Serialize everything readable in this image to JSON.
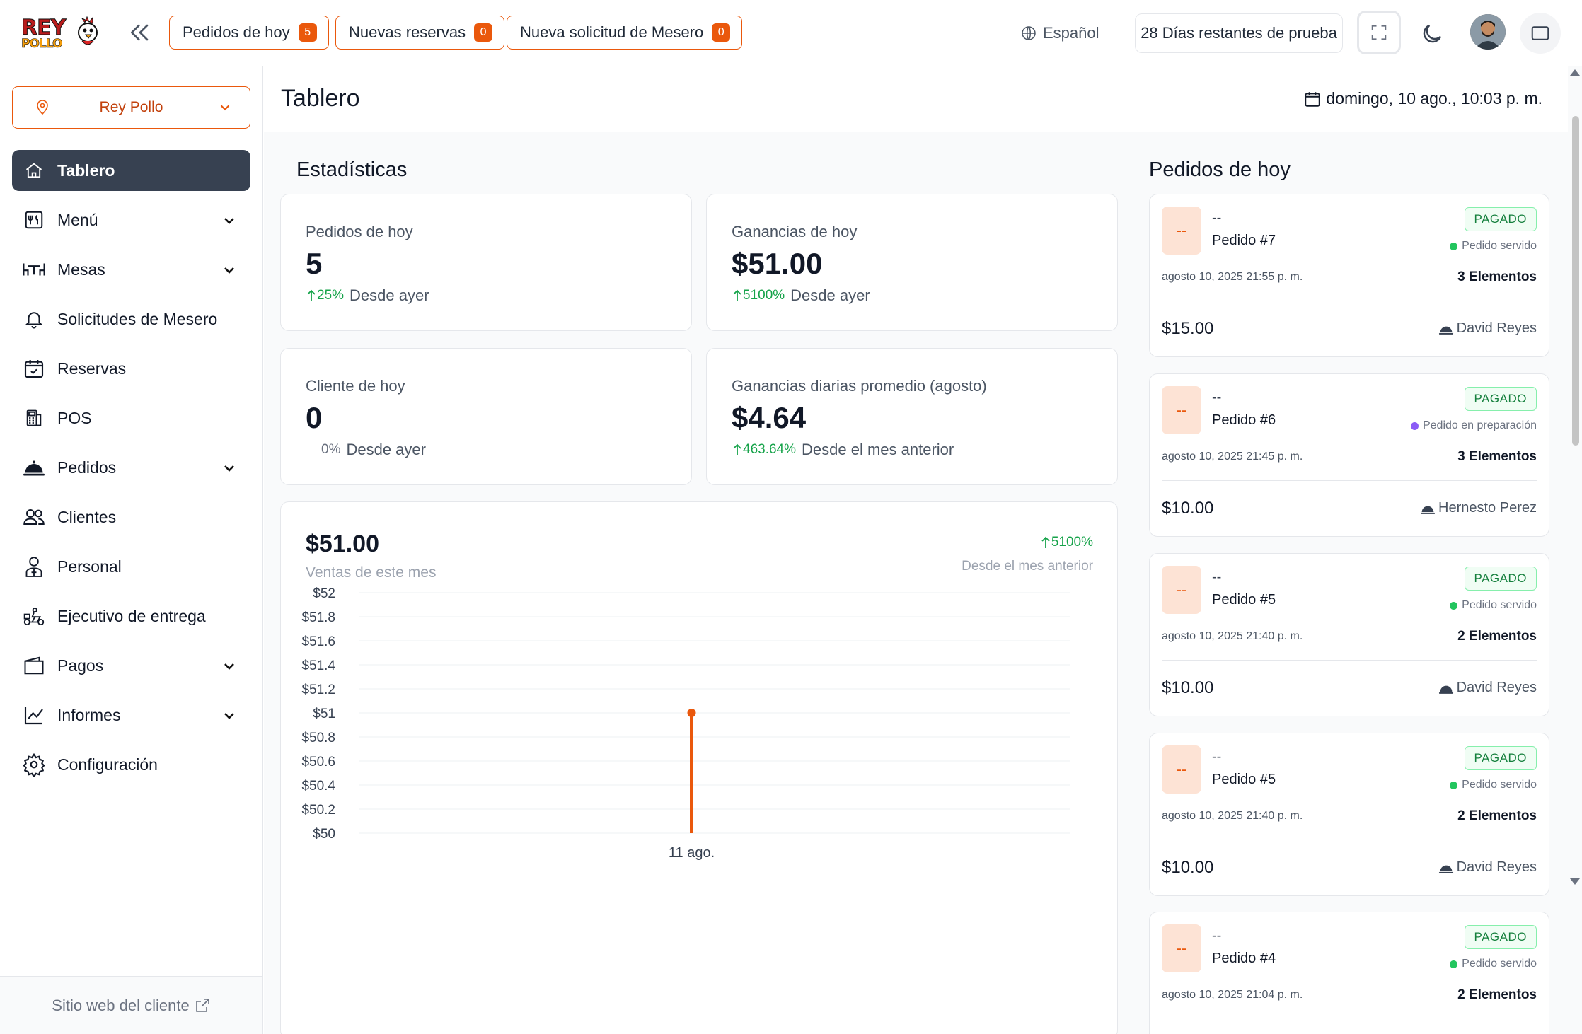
{
  "header": {
    "logo_text_top": "REY",
    "logo_text_bottom": "POLLO",
    "pills": [
      {
        "label": "Pedidos de hoy",
        "count": "5"
      },
      {
        "label": "Nuevas reservas",
        "count": "0"
      },
      {
        "label": "Nueva solicitud de Mesero",
        "count": "0"
      }
    ],
    "language": "Español",
    "trial": "28 Días restantes de prueba"
  },
  "sidebar": {
    "branch": "Rey Pollo",
    "items": [
      {
        "label": "Tablero",
        "icon": "home-icon"
      },
      {
        "label": "Menú",
        "icon": "menu-icon"
      },
      {
        "label": "Mesas",
        "icon": "tables-icon"
      },
      {
        "label": "Solicitudes de Mesero",
        "icon": "bell-icon"
      },
      {
        "label": "Reservas",
        "icon": "calendar-check-icon"
      },
      {
        "label": "POS",
        "icon": "pos-icon"
      },
      {
        "label": "Pedidos",
        "icon": "cloche-icon"
      },
      {
        "label": "Clientes",
        "icon": "users-icon"
      },
      {
        "label": "Personal",
        "icon": "staff-icon"
      },
      {
        "label": "Ejecutivo de entrega",
        "icon": "delivery-icon"
      },
      {
        "label": "Pagos",
        "icon": "wallet-icon"
      },
      {
        "label": "Informes",
        "icon": "chart-line-icon"
      },
      {
        "label": "Configuración",
        "icon": "gear-icon"
      }
    ],
    "footer_link": "Sitio web del cliente"
  },
  "main": {
    "title": "Tablero",
    "datetime": "domingo, 10 ago., 10:03 p. m.",
    "stats_title": "Estadísticas",
    "stats": [
      {
        "label": "Pedidos de hoy",
        "value": "5",
        "pct": "25%",
        "note": "Desde ayer"
      },
      {
        "label": "Ganancias de hoy",
        "value": "$51.00",
        "pct": "5100%",
        "note": "Desde ayer"
      },
      {
        "label": "Cliente de hoy",
        "value": "0",
        "pct": "0%",
        "note": "Desde ayer"
      },
      {
        "label": "Ganancias diarias promedio (agosto)",
        "value": "$4.64",
        "pct": "463.64%",
        "note": "Desde el mes anterior"
      }
    ],
    "sales": {
      "value": "$51.00",
      "label": "Ventas de este mes",
      "pct": "5100%",
      "pct_note": "Desde el mes anterior"
    }
  },
  "chart_data": {
    "type": "bar",
    "categories": [
      "11 ago."
    ],
    "values": [
      51
    ],
    "ylim": [
      50,
      52
    ],
    "yticks": [
      "$52",
      "$51.8",
      "$51.6",
      "$51.4",
      "$51.2",
      "$51",
      "$50.8",
      "$50.6",
      "$50.4",
      "$50.2",
      "$50"
    ],
    "color": "#ea580c",
    "grid": true
  },
  "orders_title": "Pedidos de hoy",
  "orders": [
    {
      "thumb": "--",
      "dash": "--",
      "number": "Pedido #7",
      "paid": "PAGADO",
      "status": "Pedido servido",
      "status_color": "#22c55e",
      "date": "agosto 10, 2025 21:55 p. m.",
      "items": "3 Elementos",
      "total": "$15.00",
      "waiter": "David Reyes"
    },
    {
      "thumb": "--",
      "dash": "--",
      "number": "Pedido #6",
      "paid": "PAGADO",
      "status": "Pedido en preparación",
      "status_color": "#8b5cf6",
      "date": "agosto 10, 2025 21:45 p. m.",
      "items": "3 Elementos",
      "total": "$10.00",
      "waiter": "Hernesto Perez"
    },
    {
      "thumb": "--",
      "dash": "--",
      "number": "Pedido #5",
      "paid": "PAGADO",
      "status": "Pedido servido",
      "status_color": "#22c55e",
      "date": "agosto 10, 2025 21:40 p. m.",
      "items": "2 Elementos",
      "total": "$10.00",
      "waiter": "David Reyes"
    },
    {
      "thumb": "--",
      "dash": "--",
      "number": "Pedido #5",
      "paid": "PAGADO",
      "status": "Pedido servido",
      "status_color": "#22c55e",
      "date": "agosto 10, 2025 21:40 p. m.",
      "items": "2 Elementos",
      "total": "$10.00",
      "waiter": "David Reyes"
    },
    {
      "thumb": "--",
      "dash": "--",
      "number": "Pedido #4",
      "paid": "PAGADO",
      "status": "Pedido servido",
      "status_color": "#22c55e",
      "date": "agosto 10, 2025 21:04 p. m.",
      "items": "2 Elementos",
      "total": "",
      "waiter": ""
    }
  ]
}
